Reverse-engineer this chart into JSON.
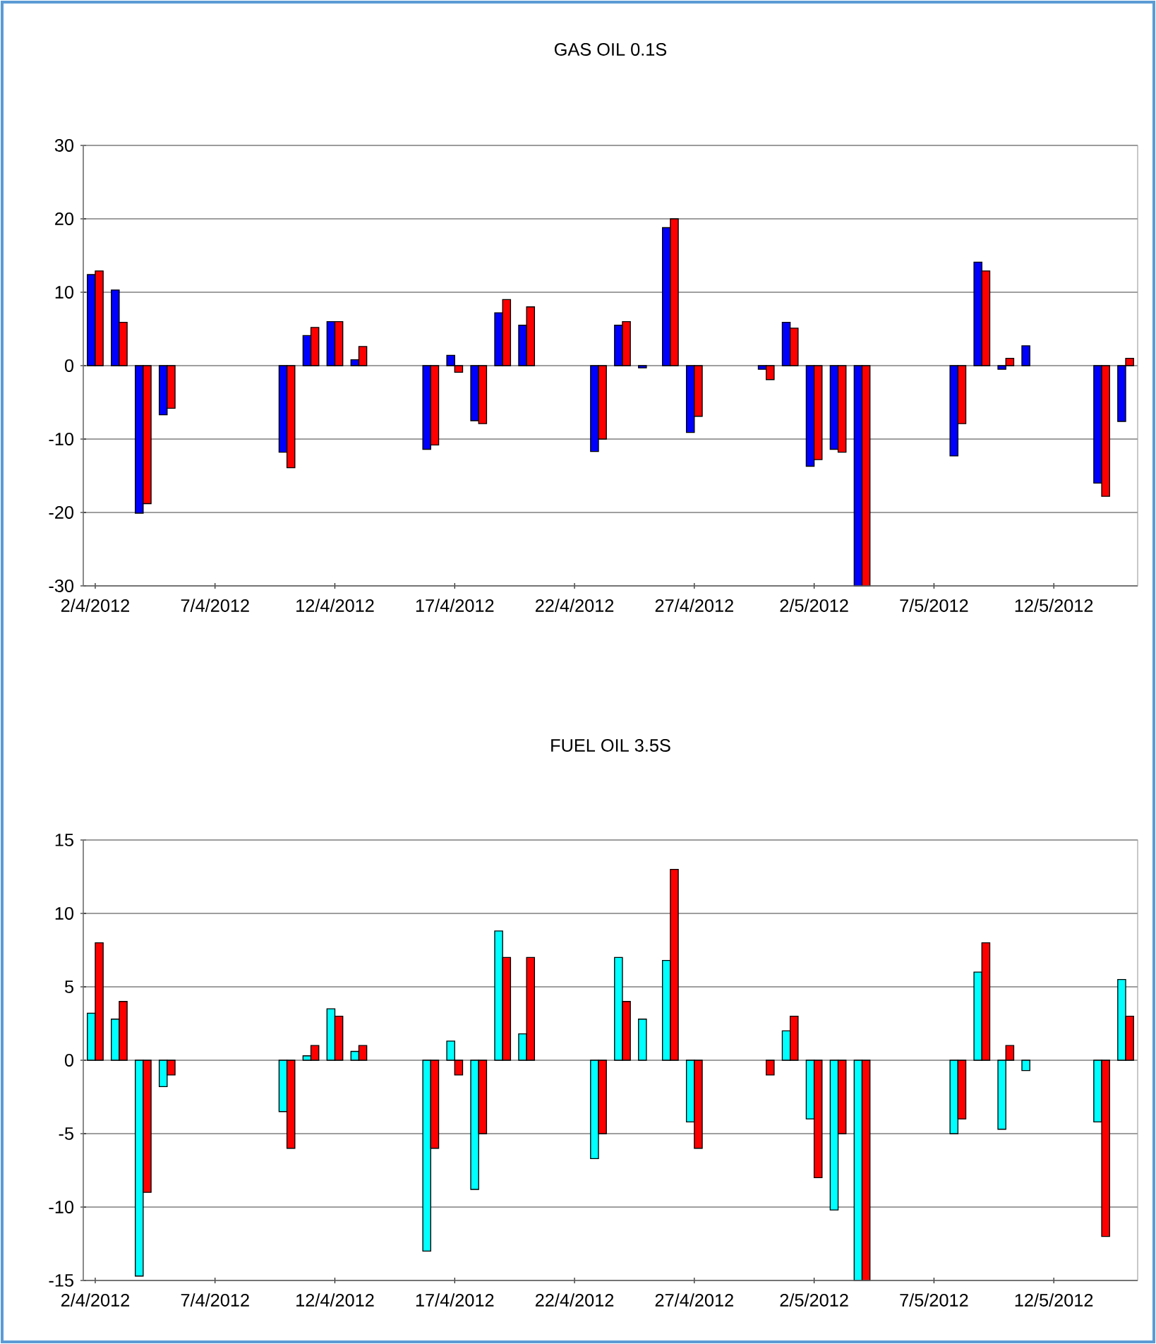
{
  "chart_data": [
    {
      "type": "bar",
      "title": "GAS OIL 0.1S",
      "x": [
        "2012-04-02",
        "2012-04-03",
        "2012-04-04",
        "2012-04-05",
        "2012-04-10",
        "2012-04-11",
        "2012-04-12",
        "2012-04-13",
        "2012-04-16",
        "2012-04-17",
        "2012-04-18",
        "2012-04-19",
        "2012-04-20",
        "2012-04-23",
        "2012-04-24",
        "2012-04-25",
        "2012-04-26",
        "2012-04-27",
        "2012-04-30",
        "2012-05-01",
        "2012-05-02",
        "2012-05-03",
        "2012-05-04",
        "2012-05-08",
        "2012-05-09",
        "2012-05-10",
        "2012-05-11",
        "2012-05-14",
        "2012-05-15"
      ],
      "series": [
        {
          "color": "#0000ff",
          "values": [
            12.4,
            10.3,
            -20.1,
            -6.7,
            -11.8,
            4.1,
            6.0,
            0.8,
            -11.4,
            1.4,
            -7.5,
            7.2,
            5.5,
            -11.7,
            5.5,
            -0.3,
            18.8,
            -9.1,
            -0.5,
            5.9,
            -13.7,
            -11.4,
            -30,
            -12.3,
            14.1,
            -0.5,
            2.7,
            -16.0,
            -7.6
          ]
        },
        {
          "color": "#ff0000",
          "values": [
            12.9,
            5.9,
            -18.8,
            -5.8,
            -13.9,
            5.2,
            6.0,
            2.6,
            -10.8,
            -0.9,
            -7.9,
            9.0,
            8.0,
            -10.0,
            6.0,
            null,
            20.0,
            -6.9,
            -1.9,
            5.1,
            -12.8,
            -11.8,
            -30,
            -7.9,
            12.9,
            1.0,
            null,
            -17.8,
            1.0
          ]
        }
      ],
      "xlim": [
        "2012-04-02",
        "2012-05-15"
      ],
      "xticks": [
        {
          "value": "2012-04-02",
          "label": "2/4/2012"
        },
        {
          "value": "2012-04-07",
          "label": "7/4/2012"
        },
        {
          "value": "2012-04-12",
          "label": "12/4/2012"
        },
        {
          "value": "2012-04-17",
          "label": "17/4/2012"
        },
        {
          "value": "2012-04-22",
          "label": "22/4/2012"
        },
        {
          "value": "2012-04-27",
          "label": "27/4/2012"
        },
        {
          "value": "2012-05-02",
          "label": "2/5/2012"
        },
        {
          "value": "2012-05-07",
          "label": "7/5/2012"
        },
        {
          "value": "2012-05-12",
          "label": "12/5/2012"
        }
      ],
      "ylim": [
        -30,
        30
      ],
      "yticks": [
        -30,
        -20,
        -10,
        0,
        10,
        20,
        30
      ],
      "grid": "y"
    },
    {
      "type": "bar",
      "title": "FUEL OIL 3.5S",
      "x": [
        "2012-04-02",
        "2012-04-03",
        "2012-04-04",
        "2012-04-05",
        "2012-04-10",
        "2012-04-11",
        "2012-04-12",
        "2012-04-13",
        "2012-04-16",
        "2012-04-17",
        "2012-04-18",
        "2012-04-19",
        "2012-04-20",
        "2012-04-23",
        "2012-04-24",
        "2012-04-25",
        "2012-04-26",
        "2012-04-27",
        "2012-04-30",
        "2012-05-01",
        "2012-05-02",
        "2012-05-03",
        "2012-05-04",
        "2012-05-08",
        "2012-05-09",
        "2012-05-10",
        "2012-05-11",
        "2012-05-14",
        "2012-05-15"
      ],
      "series": [
        {
          "color": "#00ffff",
          "values": [
            3.2,
            2.8,
            -14.7,
            -1.8,
            -3.5,
            0.3,
            3.5,
            0.6,
            -13.0,
            1.3,
            -8.8,
            8.8,
            1.8,
            -6.7,
            7.0,
            2.8,
            6.8,
            -4.2,
            null,
            2.0,
            -4.0,
            -10.2,
            -15,
            -5.0,
            6.0,
            -4.7,
            -0.7,
            -4.2,
            5.5
          ]
        },
        {
          "color": "#ff0000",
          "values": [
            8.0,
            4.0,
            -9.0,
            -1.0,
            -6.0,
            1.0,
            3.0,
            1.0,
            -6.0,
            -1.0,
            -5.0,
            7.0,
            7.0,
            -5.0,
            4.0,
            null,
            13.0,
            -6.0,
            -1.0,
            3.0,
            -8.0,
            -5.0,
            -15,
            -4.0,
            8.0,
            1.0,
            null,
            -12.0,
            3.0
          ]
        }
      ],
      "xlim": [
        "2012-04-02",
        "2012-05-15"
      ],
      "xticks": [
        {
          "value": "2012-04-02",
          "label": "2/4/2012"
        },
        {
          "value": "2012-04-07",
          "label": "7/4/2012"
        },
        {
          "value": "2012-04-12",
          "label": "12/4/2012"
        },
        {
          "value": "2012-04-17",
          "label": "17/4/2012"
        },
        {
          "value": "2012-04-22",
          "label": "22/4/2012"
        },
        {
          "value": "2012-04-27",
          "label": "27/4/2012"
        },
        {
          "value": "2012-05-02",
          "label": "2/5/2012"
        },
        {
          "value": "2012-05-07",
          "label": "7/5/2012"
        },
        {
          "value": "2012-05-12",
          "label": "12/5/2012"
        }
      ],
      "ylim": [
        -15,
        15
      ],
      "yticks": [
        -15,
        -10,
        -5,
        0,
        5,
        10,
        15
      ],
      "grid": "y"
    }
  ]
}
